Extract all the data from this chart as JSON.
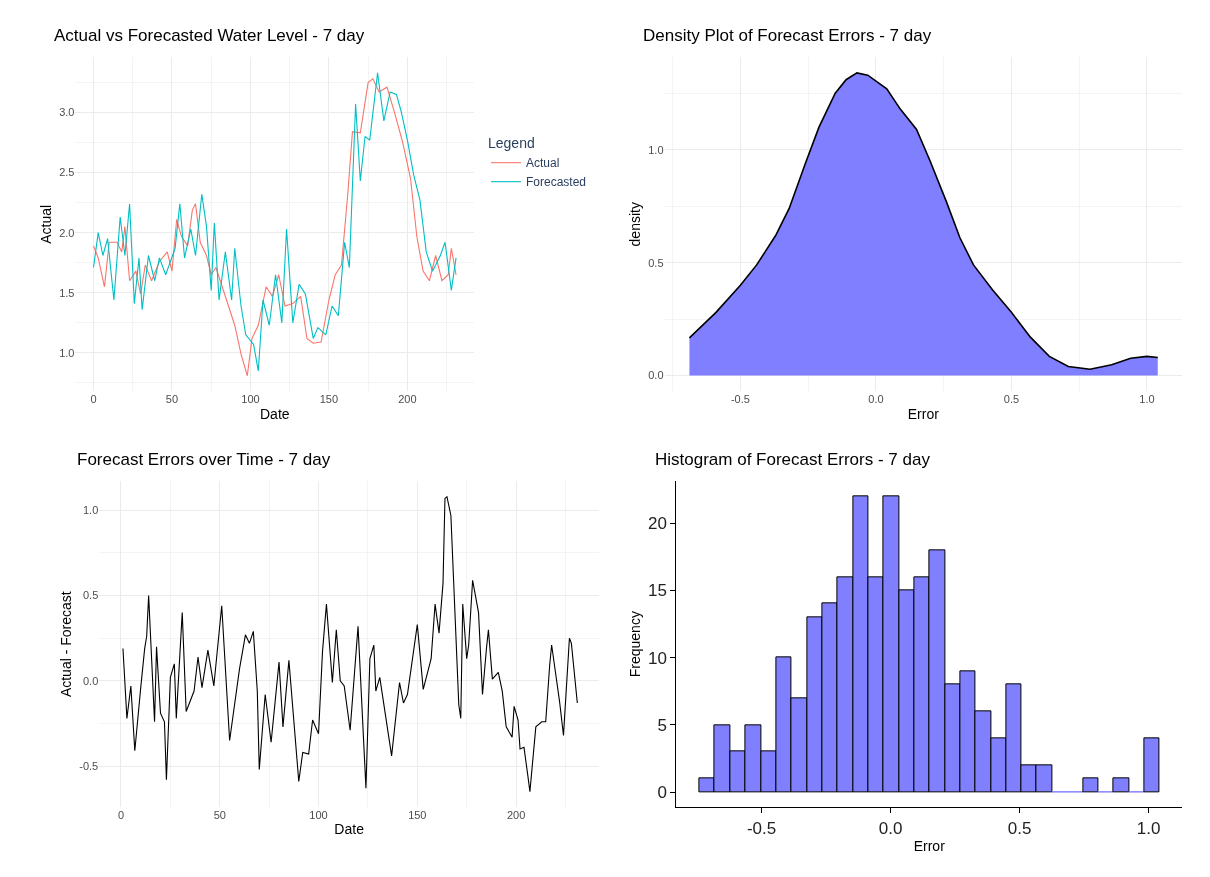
{
  "chart_data": [
    {
      "type": "line",
      "title": "Actual vs Forecasted Water Level - 7 day",
      "xlabel": "Date",
      "ylabel": "Actual",
      "legend_title": "Legend",
      "legend": "right",
      "grid": true,
      "xlim": [
        -11.5,
        242.5
      ],
      "xticks": [
        0,
        50,
        100,
        150,
        200
      ],
      "ylim": [
        0.68,
        3.46
      ],
      "yticks": [
        {
          "value": 1.0,
          "label": "1.0"
        },
        {
          "value": 1.5,
          "label": "1.5"
        },
        {
          "value": 2.0,
          "label": "2.0"
        },
        {
          "value": 2.5,
          "label": "2.5"
        },
        {
          "value": 3.0,
          "label": "3.0"
        }
      ],
      "series": [
        {
          "name": "Actual",
          "color": "#f8766d",
          "x": [
            0,
            3,
            7,
            10,
            15,
            18,
            20,
            23,
            27,
            30,
            33,
            37,
            42,
            47,
            50,
            53,
            56,
            60,
            63,
            65,
            68,
            72,
            75,
            78,
            82,
            86,
            90,
            94,
            98,
            101,
            105,
            110,
            114,
            118,
            122,
            127,
            132,
            136,
            140,
            145,
            150,
            154,
            158,
            162,
            165,
            170,
            175,
            178,
            182,
            187,
            192,
            197,
            202,
            206,
            210,
            214,
            218,
            222,
            226,
            228,
            231
          ],
          "values": [
            1.89,
            1.79,
            1.55,
            1.92,
            1.92,
            1.84,
            2.05,
            1.6,
            1.68,
            1.49,
            1.73,
            1.6,
            1.76,
            1.84,
            1.68,
            2.11,
            1.97,
            1.89,
            2.19,
            2.24,
            1.92,
            1.81,
            1.65,
            1.71,
            1.55,
            1.39,
            1.23,
            0.99,
            0.81,
            1.12,
            1.23,
            1.55,
            1.47,
            1.65,
            1.39,
            1.41,
            1.47,
            1.12,
            1.08,
            1.09,
            1.44,
            1.65,
            1.73,
            2.32,
            2.84,
            2.83,
            3.25,
            3.28,
            3.17,
            3.21,
            2.99,
            2.75,
            2.45,
            1.97,
            1.68,
            1.6,
            1.81,
            1.6,
            1.65,
            1.87,
            1.65
          ]
        },
        {
          "name": "Forecasted",
          "color": "#00bfc4",
          "x": [
            0,
            3,
            6,
            9,
            13,
            17,
            20,
            23,
            26,
            29,
            31,
            35,
            39,
            42,
            46,
            52,
            55,
            58,
            62,
            65,
            69,
            72,
            75,
            77,
            80,
            84,
            88,
            90,
            94,
            97,
            102,
            105,
            108,
            112,
            116,
            120,
            123,
            127,
            131,
            135,
            140,
            143,
            148,
            152,
            156,
            160,
            163,
            167,
            170,
            173,
            176,
            181,
            185,
            189,
            193,
            196,
            200,
            204,
            208,
            212,
            216,
            221,
            224,
            228,
            231
          ],
          "values": [
            1.71,
            2.0,
            1.81,
            1.95,
            1.44,
            2.13,
            1.81,
            2.24,
            1.41,
            1.79,
            1.36,
            1.81,
            1.6,
            1.79,
            1.65,
            1.87,
            2.24,
            1.79,
            2.03,
            1.81,
            2.32,
            2.05,
            1.52,
            2.08,
            1.44,
            1.84,
            1.44,
            1.87,
            1.39,
            1.15,
            1.07,
            0.85,
            1.44,
            1.23,
            1.65,
            1.25,
            2.03,
            1.25,
            1.57,
            1.49,
            1.12,
            1.21,
            1.15,
            1.39,
            1.31,
            1.92,
            1.71,
            3.07,
            2.43,
            2.8,
            2.77,
            3.33,
            2.93,
            3.17,
            3.15,
            3.01,
            2.77,
            2.48,
            2.27,
            1.84,
            1.68,
            1.81,
            1.92,
            1.52,
            1.79
          ]
        }
      ]
    },
    {
      "type": "area",
      "title": "Density Plot of Forecast Errors - 7 day",
      "xlabel": "Error",
      "ylabel": "density",
      "grid": true,
      "xlim": [
        -0.78,
        1.13
      ],
      "xticks": [
        {
          "value": -0.5,
          "label": "-0.5"
        },
        {
          "value": 0,
          "label": "0.0"
        },
        {
          "value": 0.5,
          "label": "0.5"
        },
        {
          "value": 1.0,
          "label": "1.0"
        }
      ],
      "ylim": [
        -0.07,
        1.41
      ],
      "yticks": [
        {
          "value": 0,
          "label": "0.0"
        },
        {
          "value": 0.5,
          "label": "0.5"
        },
        {
          "value": 1.0,
          "label": "1.0"
        }
      ],
      "series": [
        {
          "color": "#7f7fff",
          "x": [
            -0.688,
            -0.59,
            -0.5,
            -0.44,
            -0.37,
            -0.32,
            -0.26,
            -0.21,
            -0.15,
            -0.11,
            -0.07,
            -0.03,
            0.04,
            0.09,
            0.15,
            0.2,
            0.26,
            0.31,
            0.36,
            0.43,
            0.5,
            0.57,
            0.64,
            0.71,
            0.79,
            0.87,
            0.94,
            1.0,
            1.04
          ],
          "values": [
            0.167,
            0.28,
            0.4,
            0.49,
            0.62,
            0.74,
            0.94,
            1.1,
            1.25,
            1.31,
            1.34,
            1.33,
            1.27,
            1.18,
            1.09,
            0.95,
            0.77,
            0.61,
            0.49,
            0.38,
            0.28,
            0.17,
            0.085,
            0.04,
            0.028,
            0.048,
            0.077,
            0.085,
            0.08
          ]
        }
      ]
    },
    {
      "type": "line",
      "title": "Forecast Errors over Time - 7 day",
      "xlabel": "Date",
      "ylabel": "Actual - Forecast",
      "grid": true,
      "xlim": [
        -11,
        242
      ],
      "xticks": [
        0,
        50,
        100,
        150,
        200
      ],
      "ylim": [
        -0.74,
        1.17
      ],
      "yticks": [
        {
          "value": -0.5,
          "label": "-0.5"
        },
        {
          "value": 0,
          "label": "0.0"
        },
        {
          "value": 0.5,
          "label": "0.5"
        },
        {
          "value": 1.0,
          "label": "1.0"
        }
      ],
      "series": [
        {
          "color": "#000000",
          "x": [
            1,
            3,
            5,
            7,
            10,
            12,
            13,
            14,
            17,
            18,
            20,
            22,
            23,
            25,
            27,
            28,
            31,
            33,
            37,
            39,
            41,
            44,
            47,
            51,
            55,
            60,
            63,
            65,
            67,
            69,
            70,
            73,
            76,
            80,
            82,
            85,
            90,
            92,
            95,
            97,
            100,
            102,
            104,
            107,
            109,
            111,
            113,
            116,
            120,
            124,
            126,
            128,
            129,
            131,
            137,
            141,
            143,
            145,
            150,
            153,
            157,
            159,
            161,
            163,
            164,
            165,
            167,
            171,
            172,
            173,
            175,
            176,
            178,
            181,
            183,
            185,
            186,
            188,
            191,
            193,
            195,
            198,
            199,
            201,
            202,
            204,
            206,
            207,
            210,
            213,
            215,
            217,
            218,
            222,
            224,
            227,
            228,
            231
          ],
          "values": [
            0.19,
            -0.22,
            -0.03,
            -0.41,
            -0.04,
            0.19,
            0.26,
            0.5,
            -0.24,
            0.2,
            -0.19,
            -0.24,
            -0.58,
            0.02,
            0.1,
            -0.22,
            0.4,
            -0.18,
            -0.06,
            0.14,
            -0.04,
            0.18,
            -0.03,
            0.44,
            -0.35,
            0.07,
            0.27,
            0.22,
            0.29,
            -0.06,
            -0.52,
            -0.08,
            -0.36,
            0.11,
            -0.27,
            0.12,
            -0.59,
            -0.42,
            -0.43,
            -0.23,
            -0.31,
            0.17,
            0.45,
            -0.01,
            0.3,
            0.0,
            -0.03,
            -0.29,
            0.32,
            -0.63,
            0.13,
            0.21,
            -0.06,
            0.02,
            -0.44,
            -0.01,
            -0.13,
            -0.08,
            0.33,
            -0.05,
            0.13,
            0.45,
            0.28,
            0.57,
            1.07,
            1.08,
            0.97,
            -0.14,
            -0.22,
            0.45,
            0.13,
            0.21,
            0.59,
            0.4,
            -0.08,
            0.19,
            0.3,
            0.01,
            0.05,
            -0.06,
            -0.27,
            -0.33,
            -0.15,
            -0.23,
            -0.4,
            -0.39,
            -0.56,
            -0.65,
            -0.27,
            -0.24,
            -0.24,
            0.09,
            0.21,
            -0.12,
            -0.32,
            0.25,
            0.22,
            -0.13
          ]
        }
      ]
    },
    {
      "type": "histogram",
      "title": "Histogram of Forecast Errors - 7 day",
      "xlabel": "Error",
      "ylabel": "Frequency",
      "color": "#8080ff",
      "bins": [
        -0.74,
        -0.681,
        -0.621,
        -0.562,
        -0.502,
        -0.443,
        -0.383,
        -0.324,
        -0.265,
        -0.205,
        -0.146,
        -0.086,
        -0.027,
        0.033,
        0.092,
        0.151,
        0.211,
        0.27,
        0.33,
        0.389,
        0.449,
        0.508,
        0.567,
        0.627,
        0.686,
        0.746,
        0.805,
        0.865,
        0.924,
        0.983,
        1.043
      ],
      "values": [
        1,
        5,
        3,
        5,
        3,
        10,
        7,
        13,
        14,
        16,
        22,
        16,
        22,
        15,
        16,
        18,
        8,
        9,
        6,
        4,
        8,
        2,
        2,
        0,
        0,
        1,
        0,
        1,
        0,
        4
      ],
      "xlim": [
        -0.83,
        1.13
      ],
      "xticks": [
        {
          "value": -0.5,
          "label": "-0.5"
        },
        {
          "value": 0,
          "label": "0.0"
        },
        {
          "value": 0.5,
          "label": "0.5"
        },
        {
          "value": 1.0,
          "label": "1.0"
        }
      ],
      "ylim": [
        -1.1,
        23.1
      ],
      "yticks": [
        0,
        5,
        10,
        15,
        20
      ]
    }
  ]
}
